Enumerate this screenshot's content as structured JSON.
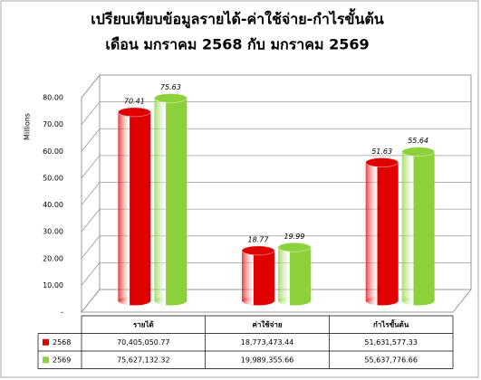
{
  "chart_data": {
    "type": "bar3d",
    "title": "เปรียบเทียบข้อมูลรายได้-ค่าใช้จ่าย-กำไรขั้นต้น",
    "subtitle": "เดือน มกราคม 2568 กับ มกราคม 2569",
    "y_label": "Millions",
    "categories": [
      "รายได้",
      "ค่าใช้จ่าย",
      "กำไรขั้นต้น"
    ],
    "series": [
      {
        "name": "2568",
        "color": "#e00000",
        "values": [
          70.41,
          18.77,
          51.63
        ]
      },
      {
        "name": "2569",
        "color": "#8dd13a",
        "values": [
          75.63,
          19.99,
          55.64
        ]
      }
    ],
    "value_table": [
      [
        "70,405,050.77",
        "18,773,473.44",
        "51,631,577.33"
      ],
      [
        "75,627,132.32",
        "19,989,355.66",
        "55,637,776.66"
      ]
    ],
    "ylim": [
      0,
      80
    ],
    "yticks": [
      {
        "value": 0,
        "label": "-"
      },
      {
        "value": 10,
        "label": "10.00"
      },
      {
        "value": 20,
        "label": "20.00"
      },
      {
        "value": 30,
        "label": "30.00"
      },
      {
        "value": 40,
        "label": "40.00"
      },
      {
        "value": 50,
        "label": "50.00"
      },
      {
        "value": 60,
        "label": "60.00"
      },
      {
        "value": 70,
        "label": "70.00"
      },
      {
        "value": 80,
        "label": "80.00"
      }
    ],
    "grid": true
  }
}
